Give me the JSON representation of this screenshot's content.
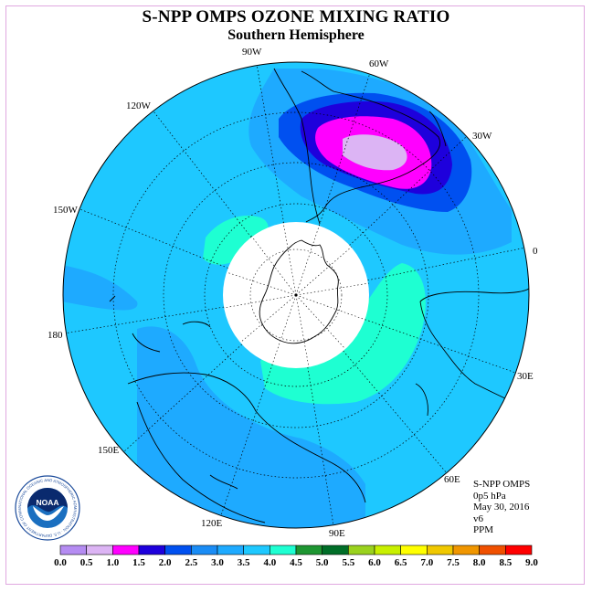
{
  "title": "S-NPP OMPS OZONE MIXING RATIO",
  "subtitle": "Southern Hemisphere",
  "longitude_labels": [
    "90W",
    "60W",
    "30W",
    "0",
    "30E",
    "60E",
    "90E",
    "120E",
    "150E",
    "180",
    "150W",
    "120W"
  ],
  "info": {
    "line1": "S-NPP OMPS",
    "line2": "0p5 hPa",
    "line3": "May 30, 2016",
    "line4": "v6",
    "line5": "PPM"
  },
  "logo": {
    "text": "NOAA",
    "ring_text": "NATIONAL OCEANIC AND ATMOSPHERIC ADMINISTRATION · U.S. DEPARTMENT OF COMMERCE"
  },
  "colorbar": {
    "ticks": [
      "0.0",
      "0.5",
      "1.0",
      "1.5",
      "2.0",
      "2.5",
      "3.0",
      "3.5",
      "4.0",
      "4.5",
      "5.0",
      "5.5",
      "6.0",
      "6.5",
      "7.0",
      "7.5",
      "8.0",
      "8.5",
      "9.0"
    ],
    "colors": [
      "#b58cf2",
      "#dcb4f4",
      "#ff00ff",
      "#1e00dc",
      "#0050f0",
      "#1a8cf5",
      "#1eaaff",
      "#1ec8ff",
      "#1effd2",
      "#1e9632",
      "#006e28",
      "#9ad21e",
      "#c8f000",
      "#ffff00",
      "#f0c800",
      "#f09600",
      "#f05000",
      "#ff0000",
      "#8c5028"
    ]
  },
  "colors": {
    "field_base": "#1ec8ff",
    "field_band": "#1eaaff",
    "pole_mask": "#ffffff",
    "frame": "#e0a8e0"
  }
}
